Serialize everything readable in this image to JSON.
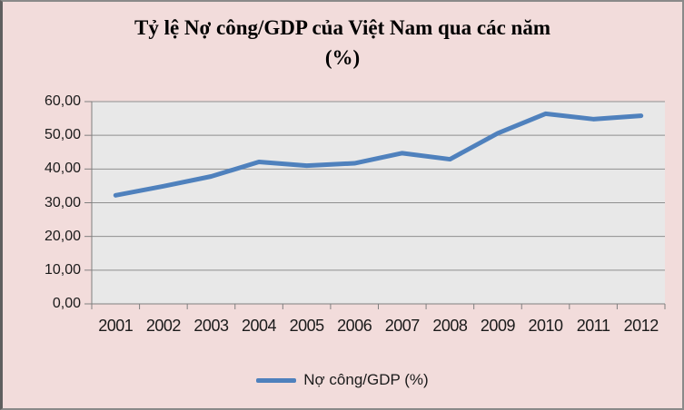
{
  "chart": {
    "title_lines": [
      "Tỷ lệ Nợ công/GDP của Việt Nam qua các năm",
      "(%)"
    ],
    "legend": {
      "label": "Nợ công/GDP (%)"
    }
  },
  "chart_data": {
    "type": "line",
    "title": "Tỷ lệ Nợ công/GDP của Việt Nam qua các năm (%)",
    "categories": [
      "2001",
      "2002",
      "2003",
      "2004",
      "2005",
      "2006",
      "2007",
      "2008",
      "2009",
      "2010",
      "2011",
      "2012"
    ],
    "series": [
      {
        "name": "Nợ công/GDP (%)",
        "values": [
          32.2,
          34.9,
          37.8,
          42.1,
          41.0,
          41.7,
          44.7,
          42.9,
          50.6,
          56.4,
          54.8,
          55.8
        ]
      }
    ],
    "xlabel": "",
    "ylabel": "",
    "ylim": [
      0,
      60
    ],
    "ytick_step": 10,
    "y_tick_labels": [
      "0,00",
      "10,00",
      "20,00",
      "30,00",
      "40,00",
      "50,00",
      "60,00"
    ],
    "grid": true,
    "legend_position": "bottom",
    "colors": {
      "line": "#4F81BD",
      "chart_bg": "#F2DCDB",
      "plot_bg": "#E8E8E8",
      "gridline": "#8F8F8F",
      "axis": "#7F7F7F",
      "text": "#1a1a1a"
    }
  }
}
